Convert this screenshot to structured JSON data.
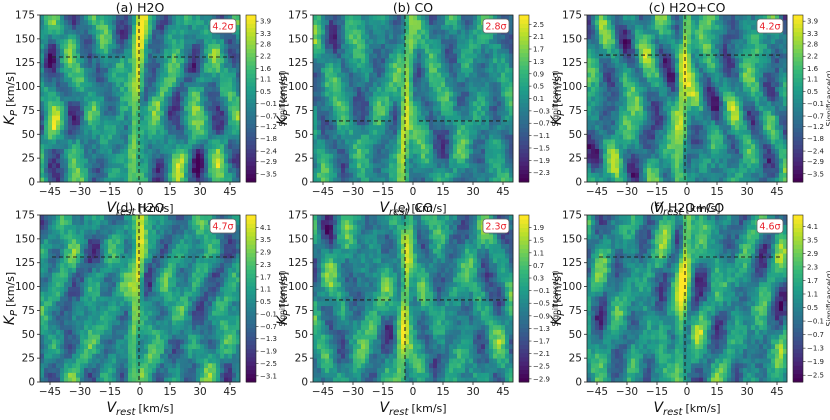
{
  "chart_data": [
    {
      "type": "heatmap",
      "title": "(a) H2O",
      "badge": "4.2σ",
      "xlabel": "V",
      "xlabel_sub": "rest",
      "xlabel_unit": "[km/s]",
      "ylabel": "K",
      "ylabel_sub": "P",
      "ylabel_unit": "[km/s]",
      "xlim": [
        -50,
        50
      ],
      "ylim": [
        0,
        175
      ],
      "xticks": [
        -45,
        -30,
        -15,
        0,
        15,
        30,
        45
      ],
      "yticks": [
        0,
        25,
        50,
        75,
        100,
        125,
        150,
        175
      ],
      "peak": {
        "vrest": -0.5,
        "kp": 131
      },
      "colorbar_label": "Significance(σ)",
      "colorbar_ticks": [
        3.9,
        3.3,
        2.8,
        2.2,
        1.6,
        1.1,
        0.5,
        -0.1,
        -0.7,
        -1.2,
        -1.8,
        -2.4,
        -2.9,
        -3.5
      ],
      "range": [
        -3.9,
        4.2
      ],
      "seed": 3
    },
    {
      "type": "heatmap",
      "title": "(b) CO",
      "badge": "2.8σ",
      "xlabel": "V",
      "xlabel_sub": "rest",
      "xlabel_unit": "[km/s]",
      "ylabel": "K",
      "ylabel_sub": "P",
      "ylabel_unit": "[km/s]",
      "xlim": [
        -50,
        50
      ],
      "ylim": [
        0,
        175
      ],
      "xticks": [
        -45,
        -30,
        -15,
        0,
        15,
        30,
        45
      ],
      "yticks": [
        0,
        25,
        50,
        75,
        100,
        125,
        150,
        175
      ],
      "peak": {
        "vrest": -4,
        "kp": 64
      },
      "colorbar_label": "Significance(σ)",
      "colorbar_ticks": [
        2.5,
        2.1,
        1.7,
        1.3,
        0.9,
        0.5,
        0.1,
        -0.3,
        -0.7,
        -1.1,
        -1.5,
        -1.9,
        -2.3
      ],
      "range": [
        -2.6,
        2.8
      ],
      "seed": 7
    },
    {
      "type": "heatmap",
      "title": "(c) H2O+CO",
      "badge": "4.2σ",
      "xlabel": "V",
      "xlabel_sub": "rest",
      "xlabel_unit": "[km/s]",
      "ylabel": "K",
      "ylabel_sub": "P",
      "ylabel_unit": "[km/s]",
      "xlim": [
        -50,
        50
      ],
      "ylim": [
        0,
        175
      ],
      "xticks": [
        -45,
        -30,
        -15,
        0,
        15,
        30,
        45
      ],
      "yticks": [
        0,
        25,
        50,
        75,
        100,
        125,
        150,
        175
      ],
      "peak": {
        "vrest": -1,
        "kp": 133
      },
      "colorbar_label": "Significance(σ)",
      "colorbar_ticks": [
        3.9,
        3.3,
        2.8,
        2.2,
        1.6,
        1.1,
        0.5,
        -0.1,
        -0.7,
        -1.2,
        -1.8,
        -2.4,
        -2.9,
        -3.5
      ],
      "range": [
        -3.9,
        4.2
      ],
      "seed": 11
    },
    {
      "type": "heatmap",
      "title": "(d) H2O",
      "badge": "4.7σ",
      "xlabel": "V",
      "xlabel_sub": "rest",
      "xlabel_unit": "[km/s]",
      "ylabel": "K",
      "ylabel_sub": "P",
      "ylabel_unit": "[km/s]",
      "xlim": [
        -50,
        50
      ],
      "ylim": [
        0,
        175
      ],
      "xticks": [
        -45,
        -30,
        -15,
        0,
        15,
        30,
        45
      ],
      "yticks": [
        0,
        25,
        50,
        75,
        100,
        125,
        150,
        175
      ],
      "peak": {
        "vrest": -0.5,
        "kp": 131
      },
      "colorbar_label": "Significance(σ)",
      "colorbar_ticks": [
        4.1,
        3.5,
        2.9,
        2.3,
        1.7,
        1.1,
        0.5,
        -0.1,
        -0.7,
        -1.3,
        -1.9,
        -2.5,
        -3.1
      ],
      "range": [
        -3.4,
        4.7
      ],
      "seed": 17
    },
    {
      "type": "heatmap",
      "title": "(e) CO",
      "badge": "2.3σ",
      "xlabel": "V",
      "xlabel_sub": "rest",
      "xlabel_unit": "[km/s]",
      "ylabel": "K",
      "ylabel_sub": "P",
      "ylabel_unit": "[km/s]",
      "xlim": [
        -50,
        50
      ],
      "ylim": [
        0,
        175
      ],
      "xticks": [
        -45,
        -30,
        -15,
        0,
        15,
        30,
        45
      ],
      "yticks": [
        0,
        25,
        50,
        75,
        100,
        125,
        150,
        175
      ],
      "peak": {
        "vrest": -4,
        "kp": 86
      },
      "colorbar_label": "Significance(σ)",
      "colorbar_ticks": [
        1.9,
        1.5,
        1.1,
        0.7,
        0.3,
        -0.1,
        -0.5,
        -0.9,
        -1.3,
        -1.7,
        -2.1,
        -2.5,
        -2.9
      ],
      "range": [
        -3.0,
        2.3
      ],
      "seed": 23
    },
    {
      "type": "heatmap",
      "title": "(f) H2O+CO",
      "badge": "4.6σ",
      "xlabel": "V",
      "xlabel_sub": "rest",
      "xlabel_unit": "[km/s]",
      "ylabel": "K",
      "ylabel_sub": "P",
      "ylabel_unit": "[km/s]",
      "xlim": [
        -50,
        50
      ],
      "ylim": [
        0,
        175
      ],
      "xticks": [
        -45,
        -30,
        -15,
        0,
        15,
        30,
        45
      ],
      "yticks": [
        0,
        25,
        50,
        75,
        100,
        125,
        150,
        175
      ],
      "peak": {
        "vrest": -1,
        "kp": 131
      },
      "colorbar_label": "Significance(σ)",
      "colorbar_ticks": [
        4.1,
        3.5,
        2.9,
        2.3,
        1.7,
        1.1,
        0.5,
        -0.1,
        -0.7,
        -1.3,
        -1.9,
        -2.5
      ],
      "range": [
        -2.8,
        4.6
      ],
      "seed": 29
    }
  ]
}
